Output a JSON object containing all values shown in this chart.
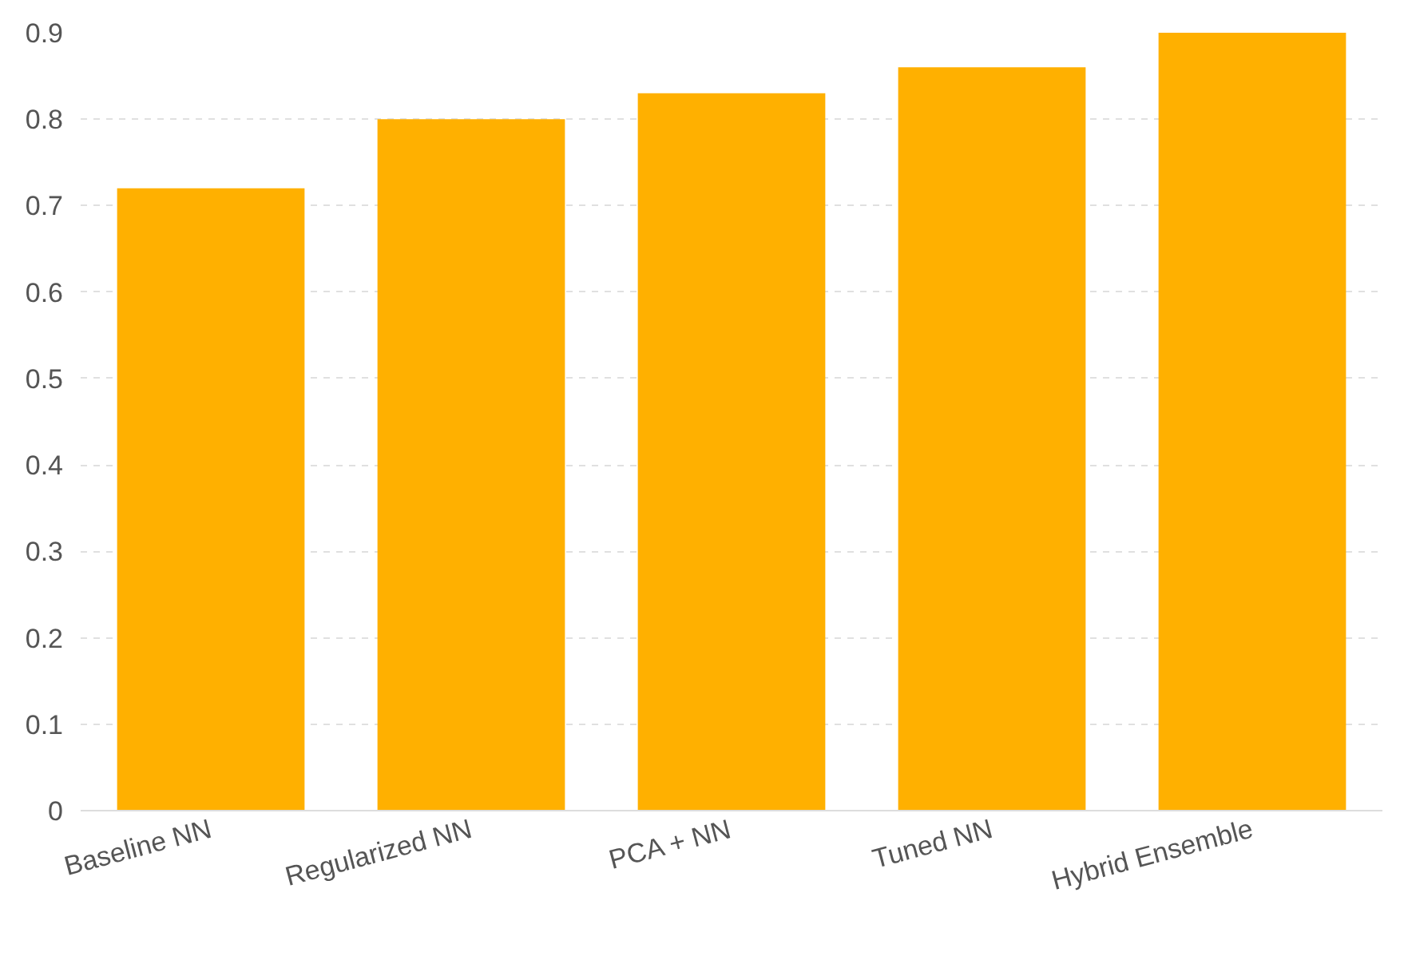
{
  "chart_data": {
    "type": "bar",
    "categories": [
      "Baseline NN",
      "Regularized NN",
      "PCA + NN",
      "Tuned NN",
      "Hybrid Ensemble"
    ],
    "values": [
      0.72,
      0.8,
      0.83,
      0.86,
      0.9
    ],
    "color": "#ffb000",
    "ylim": [
      0,
      0.9
    ],
    "yticks": [
      0,
      0.1,
      0.2,
      0.3,
      0.4,
      0.5,
      0.6,
      0.7,
      0.8,
      0.9
    ],
    "grid": "y"
  }
}
